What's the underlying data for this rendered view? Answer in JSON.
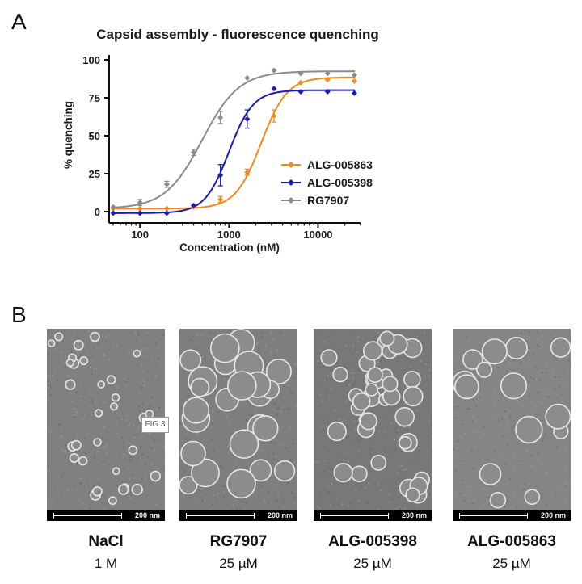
{
  "panel_a_letter": "A",
  "panel_b_letter": "B",
  "chart_data": {
    "type": "line",
    "title": "Capsid assembly - fluorescence quenching",
    "xlabel": "Concentration (nM)",
    "ylabel": "% quenching",
    "xscale": "log",
    "xlim": [
      45,
      30000
    ],
    "ylim": [
      0,
      100
    ],
    "yticks": [
      0,
      25,
      50,
      75,
      100
    ],
    "xticks": [
      100,
      1000,
      10000
    ],
    "xtick_labels": [
      "100",
      "1000",
      "10000"
    ],
    "legend_position": "right",
    "series": [
      {
        "name": "ALG-005863",
        "color": "#f5891f",
        "x": [
          50,
          100,
          200,
          400,
          800,
          1600,
          3200,
          6400,
          12800,
          25600
        ],
        "y": [
          2,
          2,
          2,
          3,
          8,
          26,
          63,
          85,
          87,
          86
        ],
        "err": [
          0,
          0,
          0,
          0,
          2,
          2,
          4,
          0,
          0,
          0
        ],
        "fit": {
          "bottom": 2,
          "top": 88.5,
          "ec50": 2300,
          "hill": 3.0
        }
      },
      {
        "name": "ALG-005398",
        "color": "#1a1ab8",
        "x": [
          50,
          100,
          200,
          400,
          800,
          1600,
          3200,
          6400,
          12800,
          25600
        ],
        "y": [
          -1,
          -1,
          -1,
          4,
          24,
          61,
          81,
          79,
          79,
          78
        ],
        "err": [
          0,
          0,
          0,
          0,
          7,
          6,
          0,
          0,
          0,
          0
        ],
        "fit": {
          "bottom": -1,
          "top": 80,
          "ec50": 1000,
          "hill": 3.2
        }
      },
      {
        "name": "RG7907",
        "color": "#8a8a8a",
        "x": [
          50,
          100,
          200,
          400,
          800,
          1600,
          3200,
          6400,
          12800,
          25600
        ],
        "y": [
          3,
          6,
          18,
          39,
          62,
          88,
          93,
          91,
          91,
          90
        ],
        "err": [
          0,
          2,
          2,
          2,
          4,
          0,
          0,
          0,
          0,
          0
        ],
        "fit": {
          "bottom": 2,
          "top": 92.5,
          "ec50": 500,
          "hill": 2.1
        }
      }
    ]
  },
  "micrographs": [
    {
      "scale_label": "200 nm",
      "name": "NaCl",
      "concentration": "1 M",
      "tone": "#808080",
      "particle": "small"
    },
    {
      "scale_label": "200 nm",
      "name": "RG7907",
      "concentration": "25 µM",
      "tone": "#7e7e7e",
      "particle": "large"
    },
    {
      "scale_label": "200 nm",
      "name": "ALG-005398",
      "concentration": "25 µM",
      "tone": "#787878",
      "particle": "medium"
    },
    {
      "scale_label": "200 nm",
      "name": "ALG-005863",
      "concentration": "25 µM",
      "tone": "#858585",
      "particle": "sparse"
    }
  ],
  "figure_label": "FIG 3"
}
